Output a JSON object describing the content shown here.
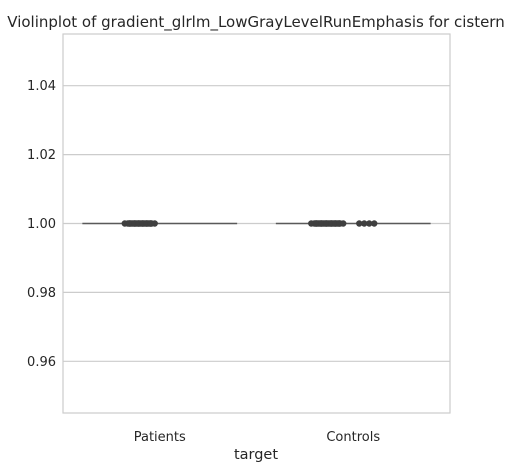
{
  "chart_data": {
    "type": "violin",
    "title": "Violinplot of gradient_glrlm_LowGrayLevelRunEmphasis for cistern",
    "xlabel": "target",
    "ylabel": "",
    "categories": [
      "Patients",
      "Controls"
    ],
    "ylim": [
      0.945,
      1.055
    ],
    "yticks": [
      0.96,
      0.98,
      1.0,
      1.02,
      1.04
    ],
    "ytick_labels": [
      "0.96",
      "0.98",
      "1.00",
      "1.02",
      "1.04"
    ],
    "grid": "horizontal",
    "legend": "none",
    "series": [
      {
        "category": "Patients",
        "median": 1.0,
        "q1": 1.0,
        "q3": 1.0,
        "min": 1.0,
        "max": 1.0,
        "points": [
          1.0,
          1.0,
          1.0,
          1.0,
          1.0,
          1.0,
          1.0,
          1.0
        ]
      },
      {
        "category": "Controls",
        "median": 1.0,
        "q1": 1.0,
        "q3": 1.0,
        "min": 1.0,
        "max": 1.0,
        "points": [
          1.0,
          1.0,
          1.0,
          1.0,
          1.0,
          1.0,
          1.0,
          1.0
        ]
      }
    ],
    "colors": {
      "line": "#5a5a5a",
      "points": "#3f3f3f",
      "grid": "#cccccc",
      "frame": "#cccccc"
    }
  }
}
